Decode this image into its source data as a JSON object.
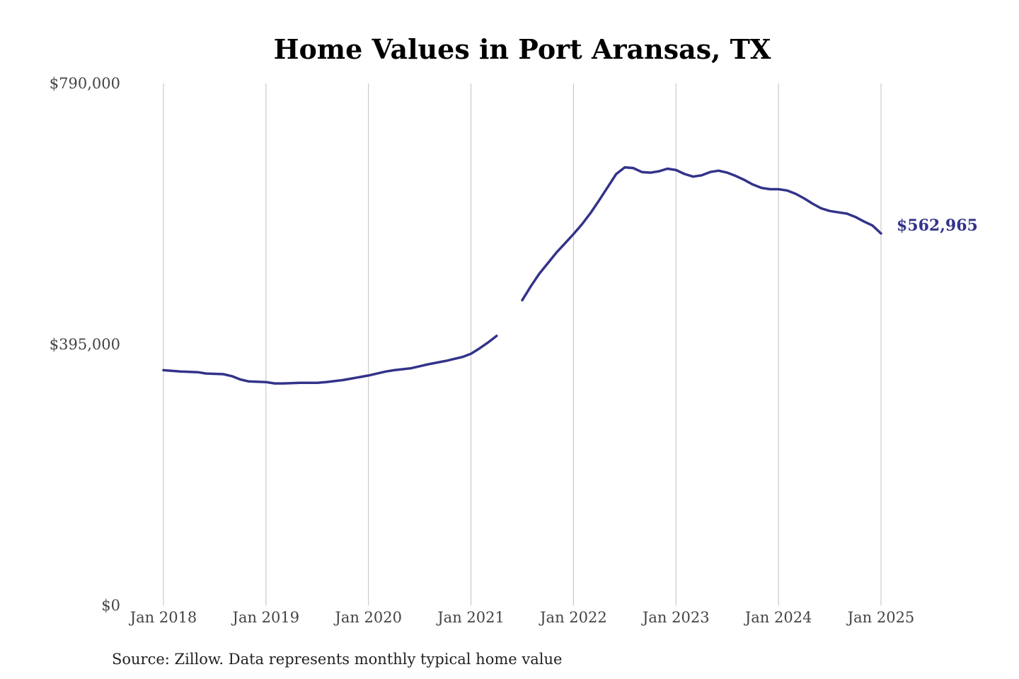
{
  "chart_data": {
    "type": "line",
    "title": "Home Values in Port Aransas, TX",
    "xlabel": "",
    "ylabel": "",
    "ylim": [
      0,
      790000
    ],
    "yticks": [
      {
        "value": 0,
        "label": "$0"
      },
      {
        "value": 395000,
        "label": "$395,000"
      },
      {
        "value": 790000,
        "label": "$790,000"
      }
    ],
    "xlim": [
      "2018-01",
      "2025-01"
    ],
    "xticks": [
      {
        "date": "2018-01",
        "label": "Jan 2018"
      },
      {
        "date": "2019-01",
        "label": "Jan 2019"
      },
      {
        "date": "2020-01",
        "label": "Jan 2020"
      },
      {
        "date": "2021-01",
        "label": "Jan 2021"
      },
      {
        "date": "2022-01",
        "label": "Jan 2022"
      },
      {
        "date": "2023-01",
        "label": "Jan 2023"
      },
      {
        "date": "2024-01",
        "label": "Jan 2024"
      },
      {
        "date": "2025-01",
        "label": "Jan 2025"
      }
    ],
    "grid": "vertical",
    "legend": "none",
    "color": "#33338a",
    "end_label": "$562,965",
    "series": [
      {
        "segments": [
          {
            "x": [
              "2018-01",
              "2018-03",
              "2018-05",
              "2018-06",
              "2018-08",
              "2018-09",
              "2018-10",
              "2018-11",
              "2019-01",
              "2019-02",
              "2019-03",
              "2019-05",
              "2019-07",
              "2019-08",
              "2019-10",
              "2020-01",
              "2020-03",
              "2020-04",
              "2020-06",
              "2020-07",
              "2020-08",
              "2020-10",
              "2020-11",
              "2020-12",
              "2021-01",
              "2021-02",
              "2021-03",
              "2021-04"
            ],
            "y": [
              356000,
              354000,
              353000,
              351000,
              350000,
              347000,
              342000,
              339000,
              338000,
              336000,
              336000,
              337000,
              337000,
              338000,
              341000,
              348000,
              354000,
              356000,
              359000,
              362000,
              365000,
              370000,
              373000,
              376000,
              381000,
              389000,
              398000,
              408000
            ]
          },
          {
            "x": [
              "2021-07",
              "2021-08",
              "2021-09",
              "2021-10",
              "2021-11",
              "2021-12",
              "2022-01",
              "2022-02",
              "2022-03",
              "2022-04",
              "2022-05",
              "2022-06",
              "2022-07",
              "2022-08",
              "2022-09",
              "2022-10",
              "2022-11",
              "2022-12",
              "2023-01",
              "2023-02",
              "2023-03",
              "2023-04",
              "2023-05",
              "2023-06",
              "2023-07",
              "2023-08",
              "2023-09",
              "2023-10",
              "2023-11",
              "2023-12",
              "2024-01",
              "2024-02",
              "2024-03",
              "2024-04",
              "2024-05",
              "2024-06",
              "2024-07",
              "2024-08",
              "2024-09",
              "2024-10",
              "2024-11",
              "2024-12",
              "2025-01"
            ],
            "y": [
              462000,
              483000,
              502000,
              518000,
              534000,
              548000,
              562000,
              577000,
              594000,
              613000,
              633000,
              653000,
              663000,
              662000,
              656000,
              655000,
              657000,
              661000,
              659000,
              653000,
              649000,
              651000,
              656000,
              658000,
              655000,
              650000,
              644000,
              637000,
              632000,
              630000,
              630000,
              628000,
              623000,
              616000,
              608000,
              601000,
              597000,
              595000,
              593000,
              588000,
              581000,
              575000,
              562965
            ]
          }
        ]
      }
    ],
    "source": "Source: Zillow. Data represents monthly typical home value"
  }
}
